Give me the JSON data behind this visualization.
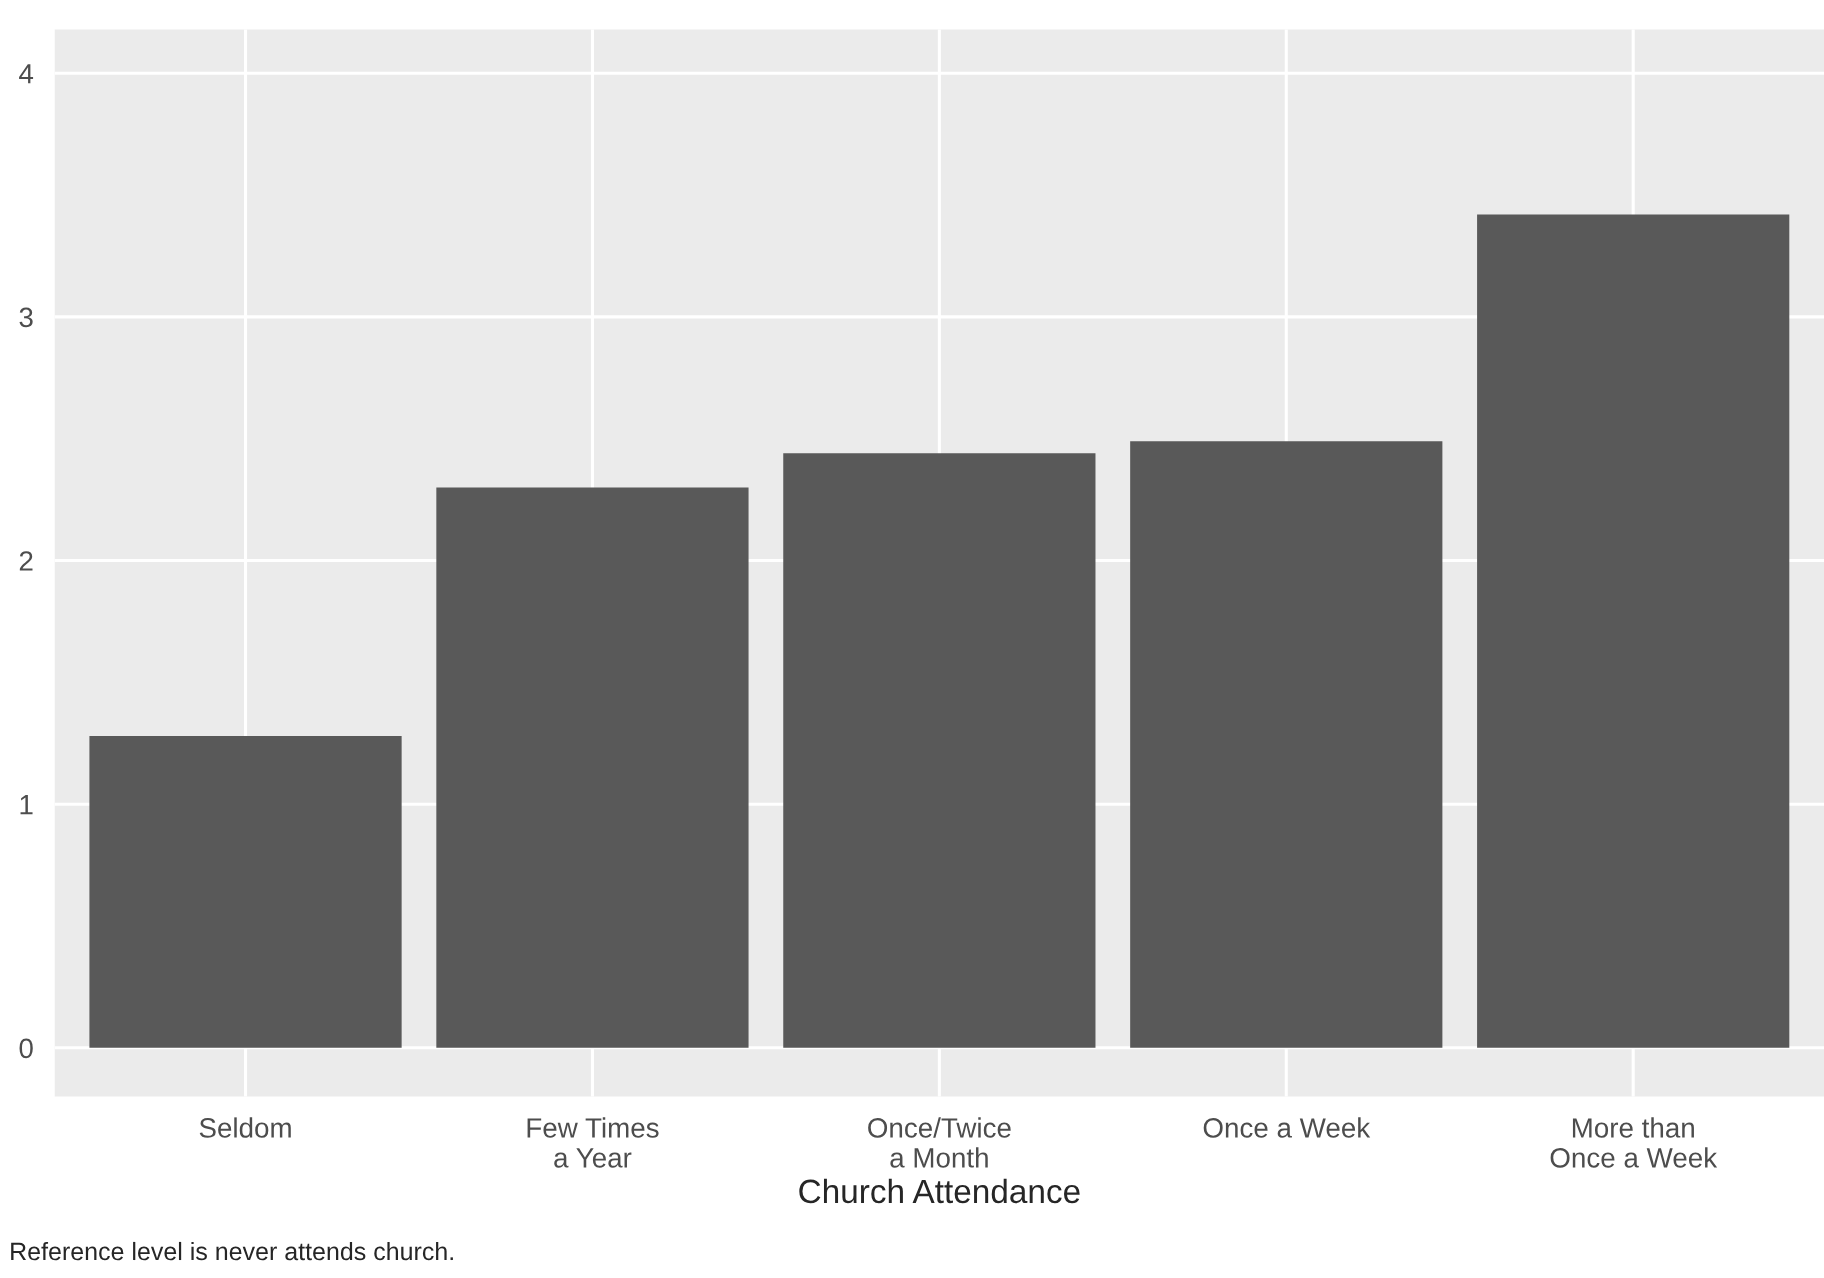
{
  "chart_data": {
    "type": "bar",
    "xlabel": "Church Attendance",
    "categories": [
      "Seldom",
      "Few Times\na Year",
      "Once/Twice\na Month",
      "Once a Week",
      "More than\nOnce a Week"
    ],
    "values": [
      1.28,
      2.3,
      2.44,
      2.49,
      3.42
    ],
    "color": "#595959",
    "ylim": [
      -0.2,
      4.18
    ],
    "yticks": [
      0,
      1,
      2,
      3,
      4
    ],
    "grid": true,
    "annotations": [
      "Reference level is never attends church."
    ]
  }
}
